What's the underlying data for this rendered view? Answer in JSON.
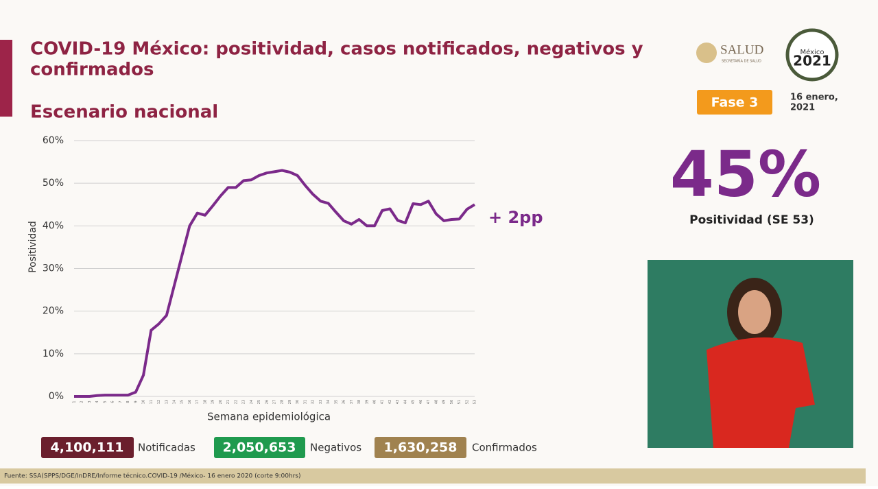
{
  "header": {
    "title_line1": "COVID-19 México: positividad, casos notificados, negativos y",
    "title_line2": "confirmados",
    "subtitle": "Escenario nacional",
    "logo_text": "SALUD",
    "logo_subtext": "SECRETARÍA DE SALUD",
    "badge_year": "2021",
    "badge_top": "México",
    "phase": "Fase 3",
    "date_line1": "16 enero,",
    "date_line2": "2021"
  },
  "chart_data": {
    "type": "line",
    "y_label": "Positividad",
    "x_label": "Semana epidemiológica",
    "annotation": "+ 2pp",
    "categories": [
      "1",
      "2",
      "3",
      "4",
      "5",
      "6",
      "7",
      "8",
      "9",
      "10",
      "11",
      "12",
      "13",
      "14",
      "15",
      "16",
      "17",
      "18",
      "19",
      "20",
      "21",
      "22",
      "23",
      "24",
      "25",
      "26",
      "27",
      "28",
      "29",
      "30",
      "31",
      "32",
      "33",
      "34",
      "35",
      "36",
      "37",
      "38",
      "39",
      "40",
      "41",
      "42",
      "43",
      "44",
      "45",
      "46",
      "47",
      "48",
      "49",
      "50",
      "51",
      "52",
      "53"
    ],
    "series": [
      {
        "name": "Positividad",
        "color": "#7b2a8a",
        "values": [
          0,
          0,
          0,
          0.2,
          0.3,
          0.3,
          0.3,
          0.3,
          1.0,
          5,
          15.5,
          17,
          19,
          26,
          33,
          40,
          43,
          42.5,
          44.7,
          47,
          49,
          49,
          50.6,
          50.8,
          51.8,
          52.4,
          52.7,
          53,
          52.6,
          51.8,
          49.5,
          47.4,
          45.8,
          45.3,
          43.2,
          41.2,
          40.4,
          41.5,
          40,
          40,
          43.6,
          44,
          41.3,
          40.7,
          45.2,
          45,
          45.8,
          42.8,
          41.2,
          41.5,
          41.6,
          43.9,
          45
        ]
      }
    ],
    "ylim": [
      0,
      60
    ],
    "yticks": [
      {
        "value": 0,
        "label": "0%"
      },
      {
        "value": 10,
        "label": "10%"
      },
      {
        "value": 20,
        "label": "20%"
      },
      {
        "value": 30,
        "label": "30%"
      },
      {
        "value": 40,
        "label": "40%"
      },
      {
        "value": 50,
        "label": "50%"
      },
      {
        "value": 60,
        "label": "60%"
      }
    ],
    "grid": true
  },
  "positivity": {
    "value_text": "45%",
    "label": "Positividad (SE 53)"
  },
  "stats": [
    {
      "value": "4,100,111",
      "label": "Notificadas",
      "color": "#6b1f2d"
    },
    {
      "value": "2,050,653",
      "label": "Negativos",
      "color": "#1f9a4e"
    },
    {
      "value": "1,630,258",
      "label": "Confirmados",
      "color": "#a0824f"
    }
  ],
  "footer": "Fuente: SSA(SPPS/DGE/InDRE/Informe técnico.COVID-19 /México- 16 enero 2020 (corte 9:00hrs)"
}
